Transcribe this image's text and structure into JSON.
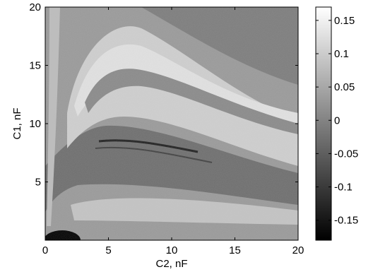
{
  "chart_data": {
    "type": "heatmap",
    "title": "",
    "xlabel": "C2, nF",
    "ylabel": "C1, nF",
    "xlim": [
      0,
      20
    ],
    "ylim": [
      0,
      20
    ],
    "x_ticks": [
      0,
      5,
      10,
      15,
      20
    ],
    "y_ticks": [
      5,
      10,
      15,
      20
    ],
    "colormap": "gray",
    "color_range": [
      -0.18,
      0.17
    ],
    "colorbar_ticks": [
      0.15,
      0.1,
      0.05,
      0,
      -0.05,
      -0.1,
      -0.15
    ],
    "colorbar_tick_labels": [
      "0.15",
      "0.1",
      "0.05",
      "0",
      "-0.05",
      "-0.1",
      "-0.15"
    ],
    "colorbar_placement": "right",
    "grid": false
  }
}
